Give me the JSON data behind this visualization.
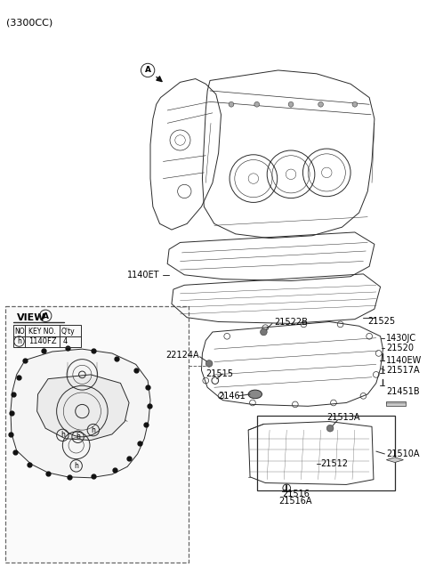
{
  "bg": "#ffffff",
  "lc": "#2a2a2a",
  "lw": 0.7,
  "fig_w": 4.8,
  "fig_h": 6.55,
  "dpi": 100,
  "labels": {
    "title": "(3300CC)",
    "A_marker": "A",
    "lbl_1140ET": "1140ET",
    "lbl_21525": "21525",
    "lbl_21522B": "21522B",
    "lbl_1430JC": "1430JC",
    "lbl_21520": "21520",
    "lbl_22124A": "22124A",
    "lbl_21515": "21515",
    "lbl_1140EW": "1140EW",
    "lbl_21461": "21461",
    "lbl_21517A": "21517A",
    "lbl_21451B": "21451B",
    "lbl_21513A": "21513A",
    "lbl_21510A": "21510A",
    "lbl_21512": "21512",
    "lbl_21516": "21516",
    "lbl_21516A": "21516A",
    "view_label": "VIEW",
    "view_A": "A",
    "tbl_no": "NO.",
    "tbl_keyno": "KEY NO.",
    "tbl_qty": "Q'ty",
    "tbl_h": "h",
    "tbl_part": "1140FZ",
    "tbl_qty_val": "4"
  }
}
